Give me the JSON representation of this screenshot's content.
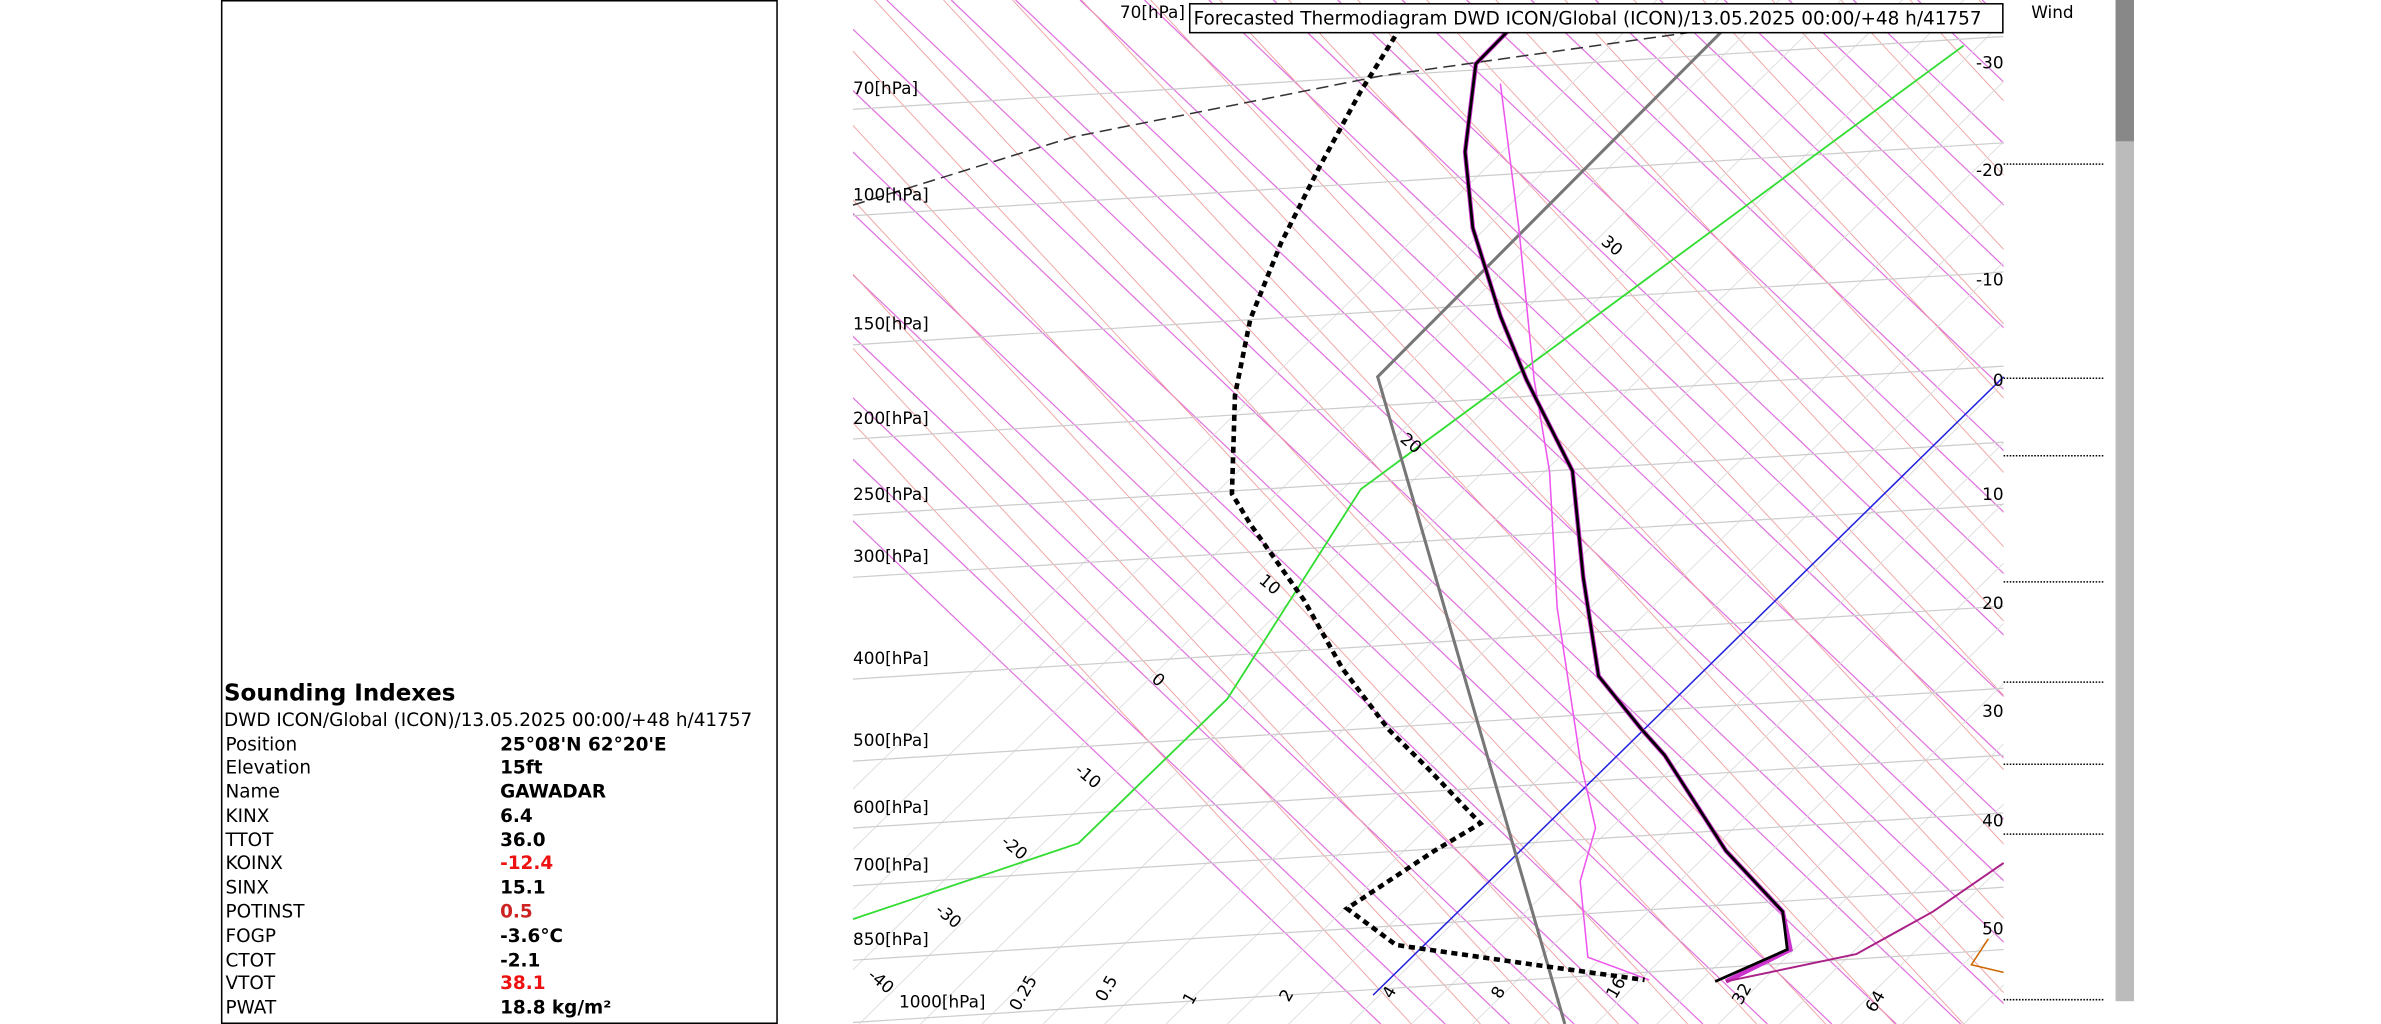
{
  "indexes": {
    "title": "Sounding Indexes",
    "subtitle": "DWD ICON/Global (ICON)/13.05.2025 00:00/+48 h/41757",
    "rows": [
      [
        "Position",
        "25°08'N 62°20'E"
      ],
      [
        "Elevation",
        "15ft"
      ],
      [
        "Name",
        "GAWADAR"
      ],
      [
        "KINX",
        "6.4"
      ],
      [
        "TTOT",
        "36.0"
      ],
      [
        "KOINX",
        "-12.4"
      ],
      [
        "SINX",
        "15.1"
      ],
      [
        "POTINST",
        "0.5"
      ],
      [
        "FOGP",
        "-3.6°C"
      ],
      [
        "CTOT",
        "-2.1"
      ],
      [
        "VTOT",
        "38.1"
      ],
      [
        "PWAT",
        "18.8 kg/m²"
      ]
    ]
  },
  "diagram": {
    "title": "Forecasted Thermodiagram DWD ICON/Global (ICON)/13.05.2025 00:00/+48 h/41757",
    "top_pressure_label": "70[hPa]",
    "pressure_labels": [
      "70[hPa]",
      "100[hPa]",
      "150[hPa]",
      "200[hPa]",
      "250[hPa]",
      "300[hPa]",
      "400[hPa]",
      "500[hPa]",
      "600[hPa]",
      "700[hPa]",
      "850[hPa]",
      "1000[hPa]"
    ],
    "right_labels": [
      "-30",
      "-20",
      "-10",
      "0",
      "10",
      "20",
      "30",
      "40",
      "50"
    ],
    "wind_label": "Wind",
    "isotherm_labels": [
      "30",
      "20",
      "10",
      "0",
      "-10",
      "-20",
      "-30",
      "-40"
    ],
    "mixing_ratio_labels": [
      "0.25",
      "0.5",
      "1",
      "2",
      "4",
      "8",
      "16",
      "32",
      "64"
    ]
  }
}
